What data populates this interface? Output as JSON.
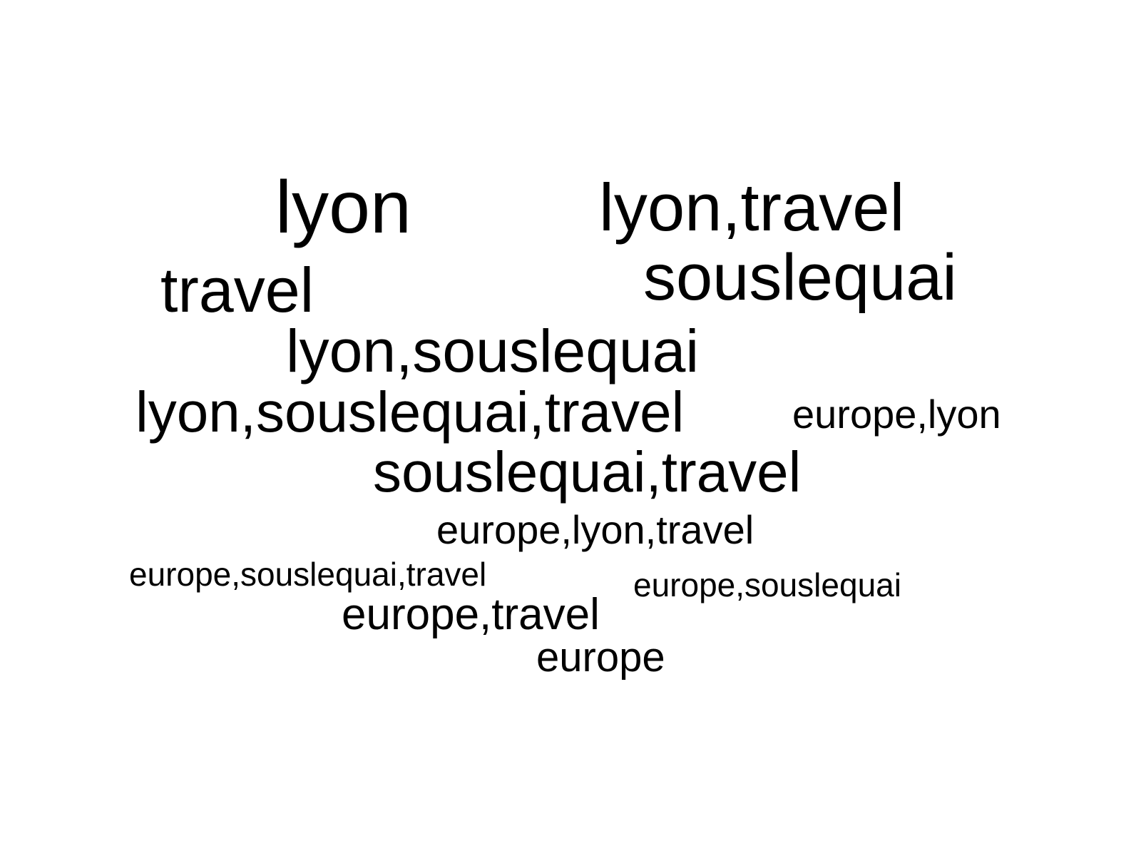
{
  "word_cloud": {
    "text_color": "#000000",
    "background_color": "#ffffff",
    "words": [
      {
        "text": "lyon"
      },
      {
        "text": "lyon,travel"
      },
      {
        "text": "souslequai"
      },
      {
        "text": "travel"
      },
      {
        "text": "lyon,souslequai"
      },
      {
        "text": "lyon,souslequai,travel"
      },
      {
        "text": "europe,lyon"
      },
      {
        "text": "souslequai,travel"
      },
      {
        "text": "europe,lyon,travel"
      },
      {
        "text": "europe,souslequai,travel"
      },
      {
        "text": "europe,souslequai"
      },
      {
        "text": "europe,travel"
      },
      {
        "text": "europe"
      }
    ]
  }
}
